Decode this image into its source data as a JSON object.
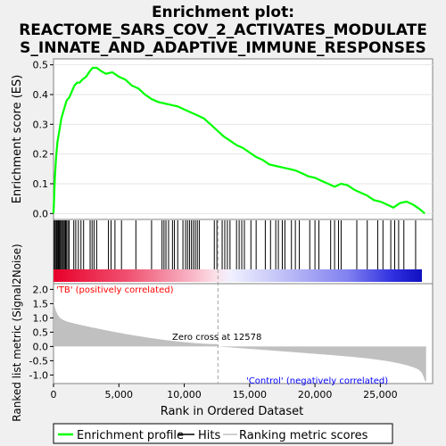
{
  "chart_data": {
    "type": "line",
    "title_lines": [
      "Enrichment plot:",
      "REACTOME_SARS_COV_2_ACTIVATES_MODULATE",
      "S_INNATE_AND_ADAPTIVE_IMMUNE_RESPONSES"
    ],
    "ylabel_es": "Enrichment score (ES)",
    "ylabel_metric": "Ranked list metric (Signal2Noise)",
    "xlabel": "Rank in Ordered Dataset",
    "es_ylim": [
      -0.02,
      0.52
    ],
    "es_yticks": [
      "0.0",
      "0.1",
      "0.2",
      "0.3",
      "0.4",
      "0.5"
    ],
    "es_ytick_values": [
      0.0,
      0.1,
      0.2,
      0.3,
      0.4,
      0.5
    ],
    "metric_ylim": [
      -1.3,
      2.2
    ],
    "metric_yticks": [
      "2.0",
      "1.5",
      "1.0",
      "0.5",
      "0.0",
      "-0.5",
      "-1.0"
    ],
    "metric_ytick_values": [
      2.0,
      1.5,
      1.0,
      0.5,
      0.0,
      -0.5,
      -1.0
    ],
    "xlim": [
      0,
      29000
    ],
    "xticks": [
      "0",
      "5,000",
      "10,000",
      "15,000",
      "20,000",
      "25,000"
    ],
    "xtick_values": [
      0,
      5000,
      10000,
      15000,
      20000,
      25000
    ],
    "n_genes": 28500,
    "zero_cross": 12578,
    "zero_cross_label": "Zero cross at 12578",
    "pos_label": "'TB' (positively correlated)",
    "neg_label": "'Control' (negatively correlated)",
    "es_curve": {
      "x": [
        0,
        100,
        200,
        300,
        450,
        600,
        800,
        1000,
        1200,
        1400,
        1600,
        1800,
        2000,
        2200,
        2500,
        2800,
        3000,
        3300,
        3600,
        4000,
        4500,
        5000,
        5500,
        6000,
        6500,
        7000,
        7500,
        8000,
        8500,
        9000,
        9500,
        10000,
        10500,
        11000,
        11500,
        12000,
        12500,
        13000,
        13500,
        14000,
        14500,
        15000,
        15500,
        16000,
        16500,
        17000,
        17500,
        18000,
        18500,
        19000,
        19500,
        20000,
        20500,
        21000,
        21500,
        22000,
        22500,
        23000,
        23500,
        24000,
        24500,
        25000,
        25500,
        26000,
        26500,
        27000,
        27500,
        28000,
        28400
      ],
      "y": [
        0.0,
        0.12,
        0.19,
        0.24,
        0.28,
        0.32,
        0.35,
        0.38,
        0.39,
        0.41,
        0.43,
        0.44,
        0.44,
        0.45,
        0.46,
        0.48,
        0.49,
        0.49,
        0.48,
        0.47,
        0.475,
        0.46,
        0.45,
        0.43,
        0.42,
        0.4,
        0.385,
        0.375,
        0.37,
        0.365,
        0.36,
        0.35,
        0.34,
        0.33,
        0.32,
        0.3,
        0.28,
        0.26,
        0.245,
        0.23,
        0.22,
        0.205,
        0.19,
        0.18,
        0.165,
        0.16,
        0.155,
        0.15,
        0.145,
        0.135,
        0.125,
        0.12,
        0.11,
        0.1,
        0.09,
        0.1,
        0.095,
        0.08,
        0.07,
        0.06,
        0.045,
        0.04,
        0.03,
        0.02,
        0.035,
        0.04,
        0.03,
        0.015,
        0.0
      ]
    },
    "hits": [
      50,
      120,
      200,
      260,
      330,
      380,
      450,
      520,
      600,
      680,
      760,
      840,
      920,
      1000,
      1100,
      1200,
      1550,
      1700,
      1900,
      2100,
      2300,
      2800,
      2950,
      3100,
      3300,
      4200,
      4400,
      4700,
      5200,
      6300,
      7500,
      8300,
      8450,
      8600,
      8800,
      9100,
      9250,
      9500,
      9900,
      10100,
      10250,
      10400,
      10550,
      10700,
      10850,
      11000,
      11150,
      12300,
      12500,
      12900,
      13100,
      13300,
      13500,
      14000,
      14200,
      14400,
      14600,
      15100,
      15500,
      16200,
      16600,
      17000,
      17200,
      17500,
      17700,
      18200,
      18500,
      18800,
      19600,
      20000,
      20300,
      21200,
      21500,
      21800,
      22000,
      23200,
      24000,
      24800,
      25200,
      25800,
      26100,
      26400,
      26800,
      27700
    ],
    "legend": [
      "Enrichment profile",
      "Hits",
      "Ranking metric scores"
    ],
    "colors": {
      "es_line": "#00ff00",
      "hits": "#000000",
      "metric_fill": "#c0c0c0",
      "pos_text": "#ff0000",
      "neg_text": "#0000ff",
      "zero_line": "#a0a0a0"
    }
  }
}
